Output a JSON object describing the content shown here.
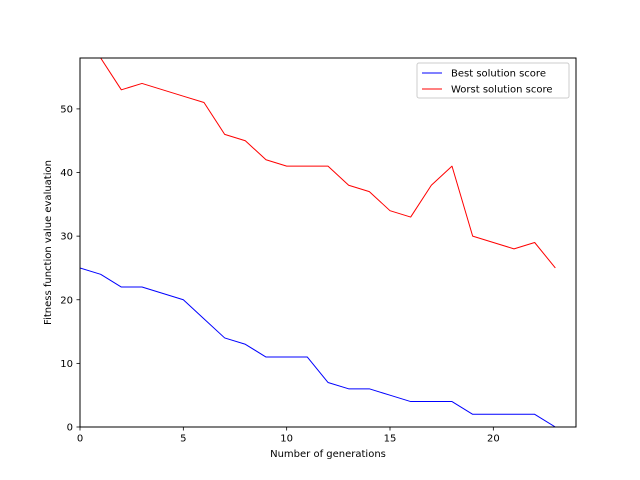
{
  "chart_data": {
    "type": "line",
    "title": "",
    "xlabel": "Number of generations",
    "ylabel": "Fitness function value evaluation",
    "xlim": [
      0,
      24
    ],
    "ylim": [
      0,
      58
    ],
    "xticks": [
      0,
      5,
      10,
      15,
      20
    ],
    "yticks": [
      0,
      10,
      20,
      30,
      40,
      50
    ],
    "grid": false,
    "legend": "top-right",
    "x": [
      0,
      1,
      2,
      3,
      4,
      5,
      6,
      7,
      8,
      9,
      10,
      11,
      12,
      13,
      14,
      15,
      16,
      17,
      18,
      19,
      20,
      21,
      22,
      23
    ],
    "series": [
      {
        "name": "Best solution score",
        "color": "#0000ff",
        "values": [
          25,
          24,
          22,
          22,
          21,
          20,
          17,
          14,
          13,
          11,
          11,
          11,
          7,
          6,
          6,
          5,
          4,
          4,
          4,
          2,
          2,
          2,
          2,
          0
        ]
      },
      {
        "name": "Worst solution score",
        "color": "#ff0000",
        "values": [
          61,
          58,
          53,
          54,
          53,
          52,
          51,
          46,
          45,
          42,
          41,
          41,
          41,
          38,
          37,
          34,
          33,
          38,
          41,
          30,
          29,
          28,
          29,
          25
        ]
      }
    ]
  }
}
